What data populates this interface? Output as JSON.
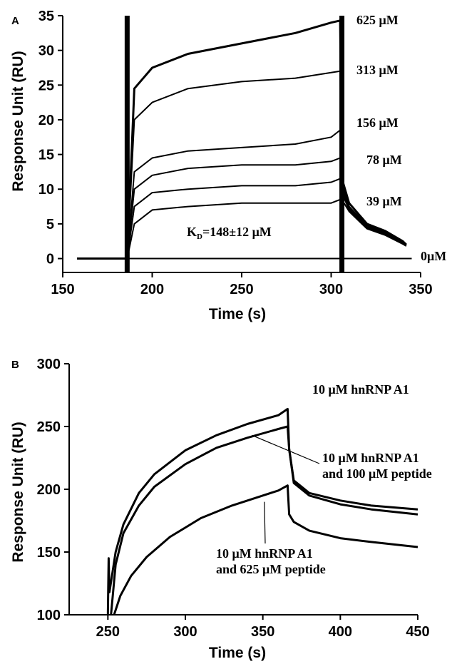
{
  "chart_data": [
    {
      "panel_label": "A",
      "type": "line",
      "xlabel": "Time (s)",
      "ylabel": "Response Unit (RU)",
      "xlim": [
        150,
        350
      ],
      "ylim": [
        -2,
        35
      ],
      "xticks": [
        "150",
        "200",
        "250",
        "300",
        "350"
      ],
      "yticks": [
        "0",
        "5",
        "10",
        "15",
        "20",
        "25",
        "30",
        "35"
      ],
      "annotation": "K<sub>D</sub>=148±12 μM",
      "annotation_main": "K",
      "annotation_sub": "D",
      "annotation_rest": "=148±12 μM",
      "injection_markers_x": [
        186,
        306
      ],
      "series": [
        {
          "name": "625 μM",
          "x": [
            158,
            180,
            186,
            190,
            200,
            220,
            250,
            280,
            300,
            305,
            306,
            310,
            320,
            330,
            340,
            342
          ],
          "y": [
            0,
            0,
            0,
            24.5,
            27.5,
            29.5,
            31,
            32.5,
            34,
            34.3,
            11.5,
            8,
            5,
            4,
            2.5,
            2
          ]
        },
        {
          "name": "313 μM",
          "x": [
            158,
            180,
            186,
            190,
            200,
            220,
            250,
            280,
            300,
            305,
            306,
            310,
            320,
            330,
            340,
            342
          ],
          "y": [
            0,
            0,
            0,
            20,
            22.5,
            24.5,
            25.5,
            26,
            26.8,
            27,
            11,
            7.5,
            4.8,
            3.8,
            2.5,
            2
          ]
        },
        {
          "name": "156 μM",
          "x": [
            158,
            180,
            186,
            190,
            200,
            220,
            250,
            280,
            300,
            305,
            306,
            310,
            320,
            330,
            340,
            342
          ],
          "y": [
            0,
            0,
            0,
            12.5,
            14.5,
            15.5,
            16,
            16.5,
            17.5,
            18.5,
            10.5,
            7.5,
            4.6,
            3.7,
            2.4,
            2
          ]
        },
        {
          "name": "78 μM",
          "x": [
            158,
            180,
            186,
            190,
            200,
            220,
            250,
            280,
            300,
            305,
            306,
            310,
            320,
            330,
            340,
            342
          ],
          "y": [
            0,
            0,
            0,
            10,
            12,
            13,
            13.5,
            13.5,
            14,
            14.5,
            10,
            7.2,
            4.5,
            3.6,
            2.3,
            2
          ]
        },
        {
          "name": "39 μM",
          "x": [
            158,
            180,
            186,
            190,
            200,
            220,
            250,
            280,
            300,
            305,
            306,
            310,
            320,
            330,
            340,
            342
          ],
          "y": [
            0,
            0,
            0,
            7.5,
            9.5,
            10,
            10.5,
            10.5,
            11,
            11.5,
            9.5,
            7,
            4.4,
            3.5,
            2.2,
            2
          ]
        },
        {
          "name": "",
          "x": [
            158,
            180,
            186,
            190,
            200,
            220,
            250,
            280,
            300,
            305,
            306,
            310,
            320,
            330,
            340,
            342
          ],
          "y": [
            0,
            0,
            0,
            5,
            7,
            7.5,
            8,
            8,
            8,
            8.5,
            8.5,
            6.8,
            4.3,
            3.4,
            2.1,
            1.8
          ]
        },
        {
          "name": "0μM",
          "x": [
            186,
            345
          ],
          "y": [
            0,
            0
          ]
        }
      ]
    },
    {
      "panel_label": "B",
      "type": "line",
      "xlabel": "Time (s)",
      "ylabel": "Response Unit (RU)",
      "xlim": [
        225,
        450
      ],
      "ylim": [
        100,
        300
      ],
      "xticks": [
        "250",
        "300",
        "350",
        "400",
        "450"
      ],
      "yticks": [
        "100",
        "150",
        "200",
        "250",
        "300"
      ],
      "series": [
        {
          "name": "10 μM hnRNP A1",
          "x": [
            250,
            250.5,
            251,
            255,
            260,
            270,
            280,
            300,
            320,
            340,
            360,
            366,
            367,
            370,
            380,
            400,
            420,
            450
          ],
          "y": [
            100,
            145,
            118,
            150,
            172,
            197,
            212,
            231,
            243,
            252,
            259,
            264,
            232,
            207,
            197,
            191,
            187,
            184
          ]
        },
        {
          "name": "10 μM hnRNP A1\nand 100 μM peptide",
          "x": [
            252,
            255,
            260,
            270,
            280,
            300,
            320,
            340,
            360,
            366,
            367,
            370,
            380,
            400,
            420,
            450
          ],
          "y": [
            100,
            140,
            165,
            187,
            202,
            220,
            233,
            241,
            248,
            250,
            232,
            205,
            195,
            188,
            184,
            180
          ]
        },
        {
          "name": "10 μM hnRNP A1\nand 625 μM peptide",
          "x": [
            254,
            258,
            265,
            275,
            290,
            310,
            330,
            350,
            360,
            366,
            367,
            370,
            380,
            400,
            420,
            450
          ],
          "y": [
            100,
            115,
            131,
            146,
            162,
            177,
            187,
            195,
            199,
            203,
            180,
            174,
            167,
            161,
            158,
            154
          ]
        }
      ],
      "label_lines": [
        [
          "10 μM hnRNP A1"
        ],
        [
          "10 μM hnRNP A1",
          "and 100 μM peptide"
        ],
        [
          "10 μM hnRNP A1",
          "and 625 μM peptide"
        ]
      ]
    }
  ]
}
